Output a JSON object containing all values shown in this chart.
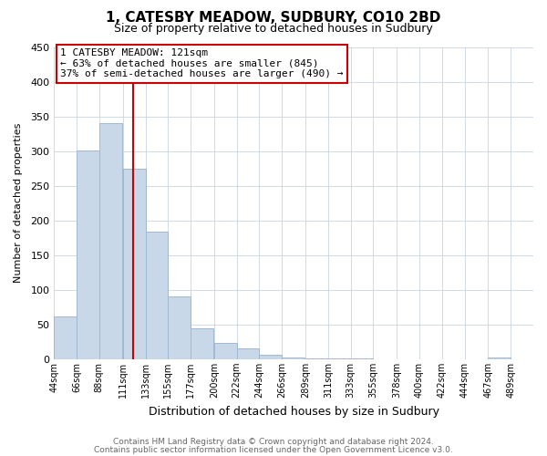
{
  "title": "1, CATESBY MEADOW, SUDBURY, CO10 2BD",
  "subtitle": "Size of property relative to detached houses in Sudbury",
  "xlabel": "Distribution of detached houses by size in Sudbury",
  "ylabel": "Number of detached properties",
  "bar_left_edges": [
    44,
    66,
    88,
    111,
    133,
    155,
    177,
    200,
    222,
    244,
    266,
    289,
    311,
    333,
    355,
    378,
    400,
    422,
    444,
    467
  ],
  "bar_heights": [
    62,
    301,
    340,
    275,
    184,
    90,
    45,
    24,
    16,
    7,
    2,
    1,
    1,
    1,
    0,
    0,
    0,
    0,
    0,
    2
  ],
  "bar_widths": [
    22,
    22,
    22,
    22,
    22,
    22,
    22,
    22,
    22,
    22,
    22,
    22,
    22,
    22,
    22,
    22,
    22,
    22,
    22,
    22
  ],
  "tick_labels": [
    "44sqm",
    "66sqm",
    "88sqm",
    "111sqm",
    "133sqm",
    "155sqm",
    "177sqm",
    "200sqm",
    "222sqm",
    "244sqm",
    "266sqm",
    "289sqm",
    "311sqm",
    "333sqm",
    "355sqm",
    "378sqm",
    "400sqm",
    "422sqm",
    "444sqm",
    "467sqm",
    "489sqm"
  ],
  "tick_positions": [
    44,
    66,
    88,
    111,
    133,
    155,
    177,
    200,
    222,
    244,
    266,
    289,
    311,
    333,
    355,
    378,
    400,
    422,
    444,
    467,
    489
  ],
  "bar_color": "#c8d8e8",
  "bar_edge_color": "#a0b8d0",
  "vline_x": 121,
  "vline_color": "#cc0000",
  "annotation_title": "1 CATESBY MEADOW: 121sqm",
  "annotation_line1": "← 63% of detached houses are smaller (845)",
  "annotation_line2": "37% of semi-detached houses are larger (490) →",
  "annotation_box_color": "#ffffff",
  "annotation_box_edge": "#cc0000",
  "ylim": [
    0,
    450
  ],
  "xlim": [
    44,
    511
  ],
  "yticks": [
    0,
    50,
    100,
    150,
    200,
    250,
    300,
    350,
    400,
    450
  ],
  "footer1": "Contains HM Land Registry data © Crown copyright and database right 2024.",
  "footer2": "Contains public sector information licensed under the Open Government Licence v3.0.",
  "background_color": "#ffffff",
  "grid_color": "#c8d4e0",
  "title_fontsize": 11,
  "subtitle_fontsize": 9,
  "tick_fontsize": 7,
  "ylabel_fontsize": 8,
  "xlabel_fontsize": 9,
  "footer_fontsize": 6.5,
  "ann_fontsize": 8
}
